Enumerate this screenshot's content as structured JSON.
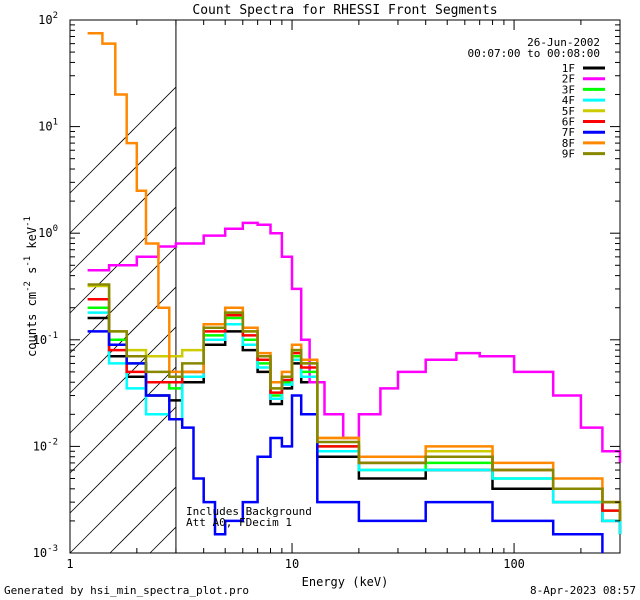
{
  "chart_data": {
    "type": "line",
    "title": "Count Spectra for RHESSI Front Segments",
    "xlabel": "Energy (keV)",
    "ylabel_parts": [
      "counts cm",
      "-2",
      " s",
      "-1",
      " keV",
      "-1"
    ],
    "xscale": "log",
    "yscale": "log",
    "xlim": [
      1,
      300
    ],
    "ylim": [
      0.001,
      100
    ],
    "x_tick_labels": [
      "1",
      "10",
      "100"
    ],
    "y_tick_labels": [
      {
        "base": "10",
        "exp": "-3"
      },
      {
        "base": "10",
        "exp": "-2"
      },
      {
        "base": "10",
        "exp": "-1"
      },
      {
        "base": "10",
        "exp": "0"
      },
      {
        "base": "10",
        "exp": "1"
      },
      {
        "base": "10",
        "exp": "2"
      }
    ],
    "date": "26-Jun-2002",
    "time_range": "00:07:00 to 00:08:00",
    "annotation_lines": [
      "Includes Background",
      "Att A0, FDecim 1"
    ],
    "excluded_region_keV": [
      1,
      3
    ],
    "legend_position": "top-right",
    "series": [
      {
        "name": "1F",
        "color": "#000000",
        "points": [
          [
            1.2,
            0.16
          ],
          [
            1.5,
            0.07
          ],
          [
            1.8,
            0.045
          ],
          [
            2.2,
            0.03
          ],
          [
            2.8,
            0.027
          ],
          [
            3.2,
            0.04
          ],
          [
            4,
            0.09
          ],
          [
            5,
            0.12
          ],
          [
            6,
            0.08
          ],
          [
            7,
            0.05
          ],
          [
            8,
            0.025
          ],
          [
            9,
            0.035
          ],
          [
            10,
            0.06
          ],
          [
            11,
            0.04
          ],
          [
            13,
            0.008
          ],
          [
            20,
            0.005
          ],
          [
            40,
            0.006
          ],
          [
            80,
            0.004
          ],
          [
            150,
            0.003
          ],
          [
            250,
            0.002
          ],
          [
            300,
            0.0015
          ]
        ]
      },
      {
        "name": "2F",
        "color": "#ff00ff",
        "points": [
          [
            1.2,
            0.45
          ],
          [
            1.5,
            0.5
          ],
          [
            2,
            0.6
          ],
          [
            2.5,
            0.75
          ],
          [
            3,
            0.8
          ],
          [
            4,
            0.95
          ],
          [
            5,
            1.1
          ],
          [
            6,
            1.25
          ],
          [
            7,
            1.2
          ],
          [
            8,
            1.0
          ],
          [
            9,
            0.6
          ],
          [
            10,
            0.3
          ],
          [
            11,
            0.1
          ],
          [
            12,
            0.04
          ],
          [
            14,
            0.02
          ],
          [
            17,
            0.012
          ],
          [
            20,
            0.02
          ],
          [
            25,
            0.035
          ],
          [
            30,
            0.05
          ],
          [
            40,
            0.065
          ],
          [
            55,
            0.075
          ],
          [
            70,
            0.07
          ],
          [
            100,
            0.05
          ],
          [
            150,
            0.03
          ],
          [
            200,
            0.015
          ],
          [
            250,
            0.009
          ],
          [
            300,
            0.007
          ]
        ]
      },
      {
        "name": "3F",
        "color": "#00ff00",
        "points": [
          [
            1.2,
            0.2
          ],
          [
            1.5,
            0.1
          ],
          [
            1.8,
            0.06
          ],
          [
            2.2,
            0.04
          ],
          [
            2.8,
            0.035
          ],
          [
            3.2,
            0.05
          ],
          [
            4,
            0.11
          ],
          [
            5,
            0.16
          ],
          [
            6,
            0.1
          ],
          [
            7,
            0.06
          ],
          [
            8,
            0.03
          ],
          [
            9,
            0.04
          ],
          [
            10,
            0.07
          ],
          [
            11,
            0.05
          ],
          [
            13,
            0.01
          ],
          [
            20,
            0.006
          ],
          [
            40,
            0.007
          ],
          [
            80,
            0.005
          ],
          [
            150,
            0.004
          ],
          [
            250,
            0.0025
          ],
          [
            300,
            0.002
          ]
        ]
      },
      {
        "name": "4F",
        "color": "#00ffff",
        "points": [
          [
            1.2,
            0.18
          ],
          [
            1.5,
            0.06
          ],
          [
            1.8,
            0.035
          ],
          [
            2.2,
            0.02
          ],
          [
            2.8,
            0.018
          ],
          [
            3.2,
            0.045
          ],
          [
            4,
            0.1
          ],
          [
            5,
            0.14
          ],
          [
            6,
            0.09
          ],
          [
            7,
            0.055
          ],
          [
            8,
            0.028
          ],
          [
            9,
            0.038
          ],
          [
            10,
            0.065
          ],
          [
            11,
            0.045
          ],
          [
            13,
            0.009
          ],
          [
            20,
            0.006
          ],
          [
            40,
            0.006
          ],
          [
            80,
            0.005
          ],
          [
            150,
            0.003
          ],
          [
            250,
            0.002
          ],
          [
            300,
            0.0015
          ]
        ]
      },
      {
        "name": "5F",
        "color": "#cccc00",
        "points": [
          [
            1.2,
            0.32
          ],
          [
            1.5,
            0.12
          ],
          [
            1.8,
            0.08
          ],
          [
            2.2,
            0.07
          ],
          [
            2.8,
            0.07
          ],
          [
            3.2,
            0.08
          ],
          [
            4,
            0.13
          ],
          [
            5,
            0.18
          ],
          [
            6,
            0.12
          ],
          [
            7,
            0.07
          ],
          [
            8,
            0.035
          ],
          [
            9,
            0.045
          ],
          [
            10,
            0.08
          ],
          [
            11,
            0.06
          ],
          [
            13,
            0.012
          ],
          [
            20,
            0.008
          ],
          [
            40,
            0.009
          ],
          [
            80,
            0.006
          ],
          [
            150,
            0.004
          ],
          [
            250,
            0.003
          ],
          [
            300,
            0.002
          ]
        ]
      },
      {
        "name": "6F",
        "color": "#ff0000",
        "points": [
          [
            1.2,
            0.24
          ],
          [
            1.5,
            0.08
          ],
          [
            1.8,
            0.05
          ],
          [
            2.2,
            0.04
          ],
          [
            2.8,
            0.04
          ],
          [
            3.2,
            0.05
          ],
          [
            4,
            0.12
          ],
          [
            5,
            0.17
          ],
          [
            6,
            0.11
          ],
          [
            7,
            0.065
          ],
          [
            8,
            0.032
          ],
          [
            9,
            0.042
          ],
          [
            10,
            0.075
          ],
          [
            11,
            0.055
          ],
          [
            13,
            0.01
          ],
          [
            20,
            0.007
          ],
          [
            40,
            0.008
          ],
          [
            80,
            0.006
          ],
          [
            150,
            0.004
          ],
          [
            250,
            0.0025
          ],
          [
            300,
            0.002
          ]
        ]
      },
      {
        "name": "7F",
        "color": "#0000ff",
        "points": [
          [
            1.2,
            0.12
          ],
          [
            1.5,
            0.09
          ],
          [
            1.8,
            0.06
          ],
          [
            2.2,
            0.03
          ],
          [
            2.8,
            0.018
          ],
          [
            3.2,
            0.015
          ],
          [
            3.6,
            0.005
          ],
          [
            4,
            0.003
          ],
          [
            4.5,
            0.0015
          ],
          [
            5,
            0.002
          ],
          [
            6,
            0.003
          ],
          [
            7,
            0.008
          ],
          [
            8,
            0.012
          ],
          [
            9,
            0.01
          ],
          [
            10,
            0.03
          ],
          [
            11,
            0.02
          ],
          [
            13,
            0.003
          ],
          [
            20,
            0.002
          ],
          [
            40,
            0.003
          ],
          [
            80,
            0.002
          ],
          [
            150,
            0.0015
          ],
          [
            250,
            0.001
          ]
        ]
      },
      {
        "name": "8F",
        "color": "#ff8800",
        "points": [
          [
            1.2,
            75
          ],
          [
            1.4,
            60
          ],
          [
            1.6,
            20
          ],
          [
            1.8,
            7
          ],
          [
            2.0,
            2.5
          ],
          [
            2.2,
            0.8
          ],
          [
            2.5,
            0.2
          ],
          [
            2.8,
            0.05
          ],
          [
            3.2,
            0.05
          ],
          [
            4,
            0.14
          ],
          [
            5,
            0.2
          ],
          [
            6,
            0.13
          ],
          [
            7,
            0.075
          ],
          [
            8,
            0.04
          ],
          [
            9,
            0.05
          ],
          [
            10,
            0.09
          ],
          [
            11,
            0.065
          ],
          [
            13,
            0.012
          ],
          [
            20,
            0.008
          ],
          [
            40,
            0.01
          ],
          [
            80,
            0.007
          ],
          [
            150,
            0.005
          ],
          [
            250,
            0.003
          ],
          [
            300,
            0.0025
          ]
        ]
      },
      {
        "name": "9F",
        "color": "#888800",
        "points": [
          [
            1.2,
            0.33
          ],
          [
            1.5,
            0.12
          ],
          [
            1.8,
            0.07
          ],
          [
            2.2,
            0.05
          ],
          [
            2.8,
            0.045
          ],
          [
            3.2,
            0.06
          ],
          [
            4,
            0.13
          ],
          [
            5,
            0.18
          ],
          [
            6,
            0.12
          ],
          [
            7,
            0.07
          ],
          [
            8,
            0.035
          ],
          [
            9,
            0.045
          ],
          [
            10,
            0.08
          ],
          [
            11,
            0.06
          ],
          [
            13,
            0.011
          ],
          [
            20,
            0.007
          ],
          [
            40,
            0.008
          ],
          [
            80,
            0.006
          ],
          [
            150,
            0.004
          ],
          [
            250,
            0.003
          ],
          [
            300,
            0.002
          ]
        ]
      }
    ]
  },
  "footer": {
    "left": "Generated by hsi_min_spectra_plot.pro",
    "right": "8-Apr-2023 08:57"
  }
}
